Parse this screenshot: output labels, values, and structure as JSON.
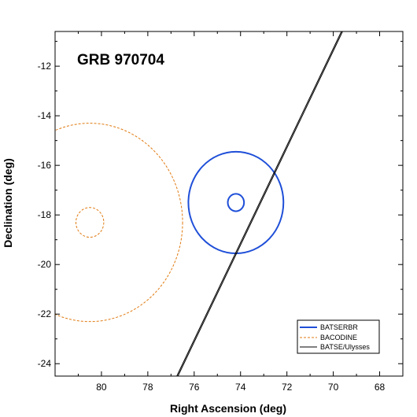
{
  "chart_data": {
    "type": "scatter",
    "title": "GRB 970704",
    "xlabel": "Right Ascension (deg)",
    "ylabel": "Declination (deg)",
    "xlim": [
      82.0,
      67.0
    ],
    "ylim": [
      -24.5,
      -10.6
    ],
    "x_reversed": true,
    "x_ticks": [
      80,
      78,
      76,
      74,
      72,
      70,
      68
    ],
    "y_ticks": [
      -12,
      -14,
      -16,
      -18,
      -20,
      -22,
      -24
    ],
    "grid": false,
    "legend_position": "bottom-right",
    "colors": {
      "BATSE RBR": "#1f4fd8",
      "BACODINE": "#e07a10",
      "BATSE/Ulysses": "#000000"
    },
    "series": [
      {
        "name": "BATSE RBR",
        "style": "solid",
        "circles": [
          {
            "center": [
              74.2,
              -17.5
            ],
            "radius_deg": 2.05
          },
          {
            "center": [
              74.2,
              -17.5
            ],
            "radius_deg": 0.35
          }
        ]
      },
      {
        "name": "BACODINE",
        "style": "dashed",
        "circles": [
          {
            "center": [
              80.5,
              -18.3
            ],
            "radius_deg": 4.0
          },
          {
            "center": [
              80.5,
              -18.3
            ],
            "radius_deg": 0.6
          }
        ]
      },
      {
        "name": "BATSE/Ulysses",
        "style": "solid",
        "lines": [
          {
            "points": [
              [
                76.75,
                -24.5
              ],
              [
                69.65,
                -10.6
              ]
            ]
          },
          {
            "points": [
              [
                76.7,
                -24.5
              ],
              [
                69.6,
                -10.6
              ]
            ]
          }
        ]
      }
    ],
    "legend": {
      "entries": [
        {
          "label": "BATSERBR",
          "series": "BATSE RBR"
        },
        {
          "label": "BACODINE",
          "series": "BACODINE"
        },
        {
          "label": "BATSE/Ulysses",
          "series": "BATSE/Ulysses"
        }
      ]
    }
  }
}
